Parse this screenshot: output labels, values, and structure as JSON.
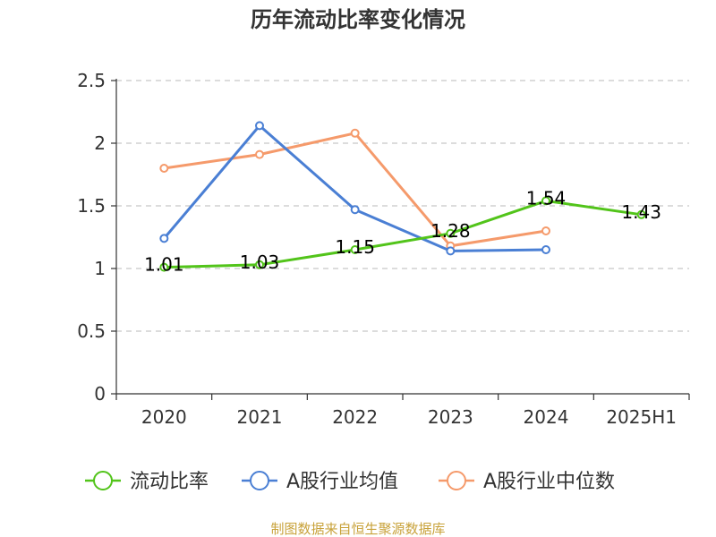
{
  "chart_data": {
    "type": "line",
    "title": "历年流动比率变化情况",
    "categories": [
      "2020",
      "2021",
      "2022",
      "2023",
      "2024",
      "2025H1"
    ],
    "ylim": [
      0,
      2.5
    ],
    "yticks": [
      "0",
      "0.5",
      "1",
      "1.5",
      "2",
      "2.5"
    ],
    "grid": true,
    "legend_position": "bottom",
    "series": [
      {
        "name": "流动比率",
        "color": "#52c41a",
        "values": [
          1.01,
          1.03,
          1.15,
          1.28,
          1.54,
          1.43
        ],
        "labels": [
          "1.01",
          "1.03",
          "1.15",
          "1.28",
          "1.54",
          "1.43"
        ]
      },
      {
        "name": "A股行业均值",
        "color": "#4a7fd4",
        "values": [
          1.24,
          2.14,
          1.47,
          1.14,
          1.15,
          null
        ]
      },
      {
        "name": "A股行业中位数",
        "color": "#f59a6b",
        "values": [
          1.8,
          1.91,
          2.08,
          1.18,
          1.3,
          null
        ]
      }
    ],
    "source": "制图数据来自恒生聚源数据库"
  }
}
